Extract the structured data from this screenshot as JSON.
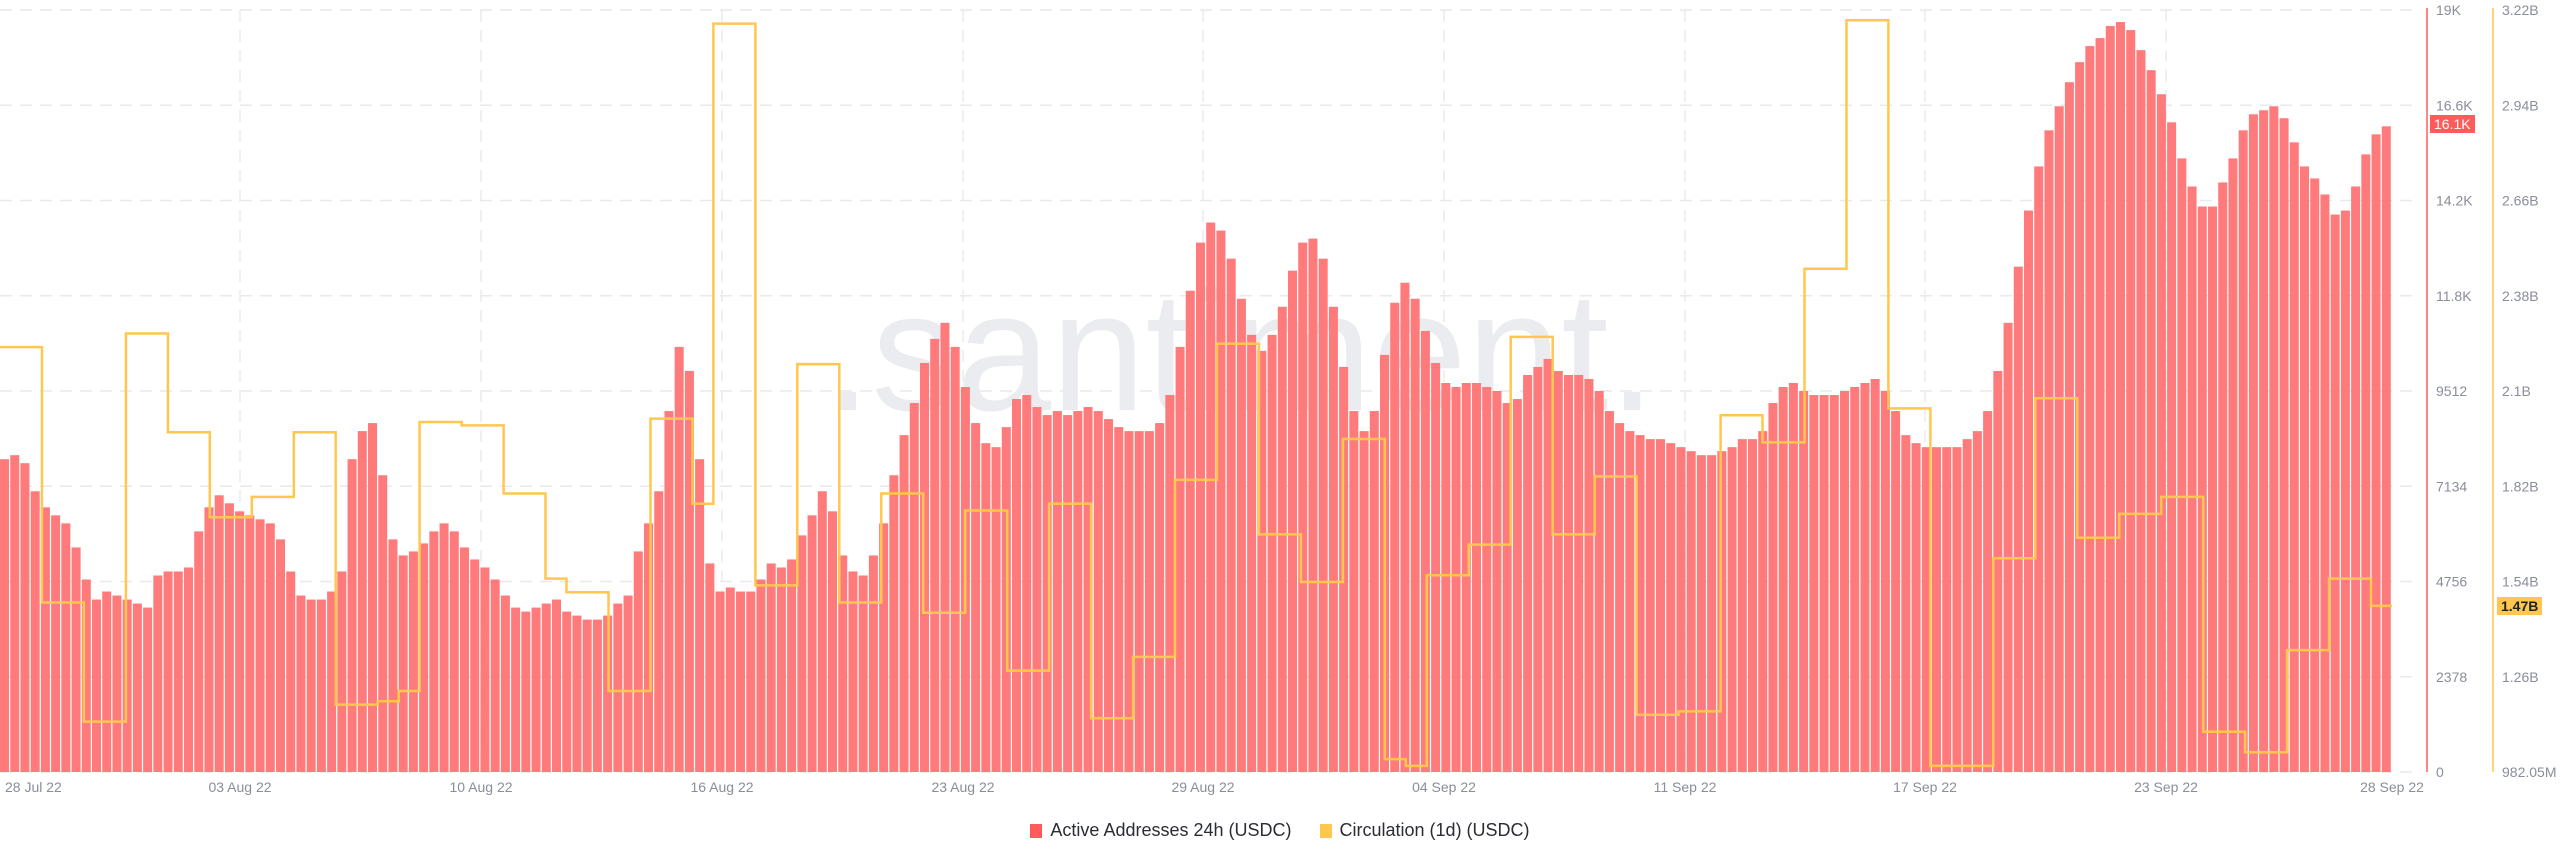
{
  "watermark": ".santiment.",
  "legend": [
    {
      "label": "Active Addresses 24h (USDC)",
      "color": "#ff5b5b"
    },
    {
      "label": "Circulation (1d) (USDC)",
      "color": "#ffc74f"
    }
  ],
  "badges": {
    "left_current": "16.1K",
    "right_current": "1.47B"
  },
  "chart_data": {
    "type": "bar+line",
    "title": "",
    "xlabel": "",
    "x_tick_labels": [
      "28 Jul 22",
      "03 Aug 22",
      "10 Aug 22",
      "16 Aug 22",
      "23 Aug 22",
      "29 Aug 22",
      "04 Sep 22",
      "11 Sep 22",
      "17 Sep 22",
      "23 Sep 22",
      "28 Sep 22"
    ],
    "y_left": {
      "label": "Active Addresses 24h (USDC)",
      "ticks": [
        "0",
        "2378",
        "4756",
        "7134",
        "9512",
        "11.8K",
        "14.2K",
        "16.6K",
        "19K"
      ],
      "range": [
        0,
        19000
      ],
      "current_value_badge": "16.1K"
    },
    "y_right": {
      "label": "Circulation (1d) (USDC)",
      "ticks": [
        "982.05M",
        "1.26B",
        "1.54B",
        "1.82B",
        "2.1B",
        "2.38B",
        "2.66B",
        "2.94B",
        "3.22B"
      ],
      "range": [
        982050000,
        3220000000
      ],
      "current_value_badge": "1.47B"
    },
    "grid": true,
    "legend_position": "bottom",
    "series": [
      {
        "name": "Active Addresses 24h (USDC)",
        "type": "bar",
        "color": "#ff5b5b",
        "axis": "left",
        "date_range": [
          "28 Jul 22",
          "28 Sep 22"
        ],
        "values": [
          7800,
          7900,
          7700,
          7000,
          6600,
          6400,
          6200,
          5600,
          4800,
          4300,
          4500,
          4400,
          4300,
          4200,
          4100,
          4900,
          5000,
          5000,
          5100,
          6000,
          6600,
          6900,
          6700,
          6500,
          6400,
          6300,
          6200,
          5800,
          5000,
          4400,
          4300,
          4300,
          4500,
          5000,
          7800,
          8500,
          8700,
          7400,
          5800,
          5400,
          5500,
          5700,
          6000,
          6200,
          6000,
          5600,
          5300,
          5100,
          4800,
          4400,
          4100,
          4000,
          4100,
          4200,
          4300,
          4000,
          3900,
          3800,
          3800,
          3900,
          4200,
          4400,
          5500,
          6200,
          7000,
          9000,
          10600,
          10000,
          7800,
          5200,
          4500,
          4600,
          4500,
          4500,
          4800,
          5200,
          5100,
          5300,
          5900,
          6400,
          7000,
          6500,
          5400,
          5000,
          4900,
          5400,
          6200,
          7400,
          8400,
          9200,
          10200,
          10800,
          11200,
          10600,
          9600,
          8700,
          8200,
          8100,
          8600,
          9300,
          9400,
          9100,
          8900,
          9000,
          8900,
          9000,
          9100,
          9000,
          8800,
          8600,
          8500,
          8500,
          8500,
          8700,
          9400,
          10600,
          12000,
          13200,
          13700,
          13500,
          12800,
          11800,
          10900,
          10500,
          10900,
          11600,
          12500,
          13200,
          13300,
          12800,
          11600,
          10100,
          9000,
          8500,
          9000,
          10400,
          11700,
          12200,
          11800,
          11000,
          10200,
          9700,
          9600,
          9700,
          9700,
          9600,
          9500,
          9200,
          9300,
          9900,
          10100,
          10300,
          10000,
          9900,
          9900,
          9800,
          9500,
          9000,
          8700,
          8500,
          8400,
          8300,
          8300,
          8200,
          8100,
          8000,
          7900,
          7900,
          8000,
          8100,
          8300,
          8300,
          8500,
          9200,
          9600,
          9700,
          9500,
          9400,
          9400,
          9400,
          9500,
          9600,
          9700,
          9800,
          9500,
          9000,
          8400,
          8200,
          8100,
          8100,
          8100,
          8100,
          8300,
          8500,
          9000,
          10000,
          11200,
          12600,
          14000,
          15100,
          16000,
          16600,
          17200,
          17700,
          18100,
          18300,
          18600,
          18700,
          18500,
          18000,
          17500,
          16900,
          16200,
          15300,
          14600,
          14100,
          14100,
          14700,
          15300,
          16000,
          16400,
          16500,
          16600,
          16300,
          15700,
          15100,
          14800,
          14400,
          13900,
          14000,
          14600,
          15400,
          15900,
          16100
        ]
      },
      {
        "name": "Circulation (1d) (USDC)",
        "type": "line-step",
        "color": "#ffc74f",
        "axis": "right",
        "daily_values_B": [
          2.23,
          2.23,
          1.48,
          1.48,
          1.13,
          1.13,
          2.27,
          2.27,
          1.98,
          1.98,
          1.73,
          1.73,
          1.79,
          1.79,
          1.98,
          1.98,
          1.18,
          1.18,
          1.19,
          1.22,
          2.01,
          2.01,
          2.0,
          2.0,
          1.8,
          1.8,
          1.55,
          1.51,
          1.51,
          1.22,
          1.22,
          2.02,
          2.02,
          1.77,
          3.18,
          3.18,
          1.53,
          1.53,
          2.18,
          2.18,
          1.48,
          1.48,
          1.8,
          1.8,
          1.45,
          1.45,
          1.75,
          1.75,
          1.28,
          1.28,
          1.77,
          1.77,
          1.14,
          1.14,
          1.32,
          1.32,
          1.84,
          1.84,
          2.24,
          2.24,
          1.68,
          1.68,
          1.54,
          1.54,
          1.96,
          1.96,
          1.02,
          1.0,
          1.56,
          1.56,
          1.65,
          1.65,
          2.26,
          2.26,
          1.68,
          1.68,
          1.85,
          1.85,
          1.15,
          1.15,
          1.16,
          1.16,
          2.03,
          2.03,
          1.95,
          1.95,
          2.46,
          2.46,
          3.19,
          3.19,
          2.05,
          2.05,
          1.0,
          1.0,
          1.0,
          1.61,
          1.61,
          2.08,
          2.08,
          1.67,
          1.67,
          1.74,
          1.74,
          1.79,
          1.79,
          1.1,
          1.1,
          1.04,
          1.04,
          1.34,
          1.34,
          1.55,
          1.55,
          1.47
        ]
      }
    ]
  }
}
